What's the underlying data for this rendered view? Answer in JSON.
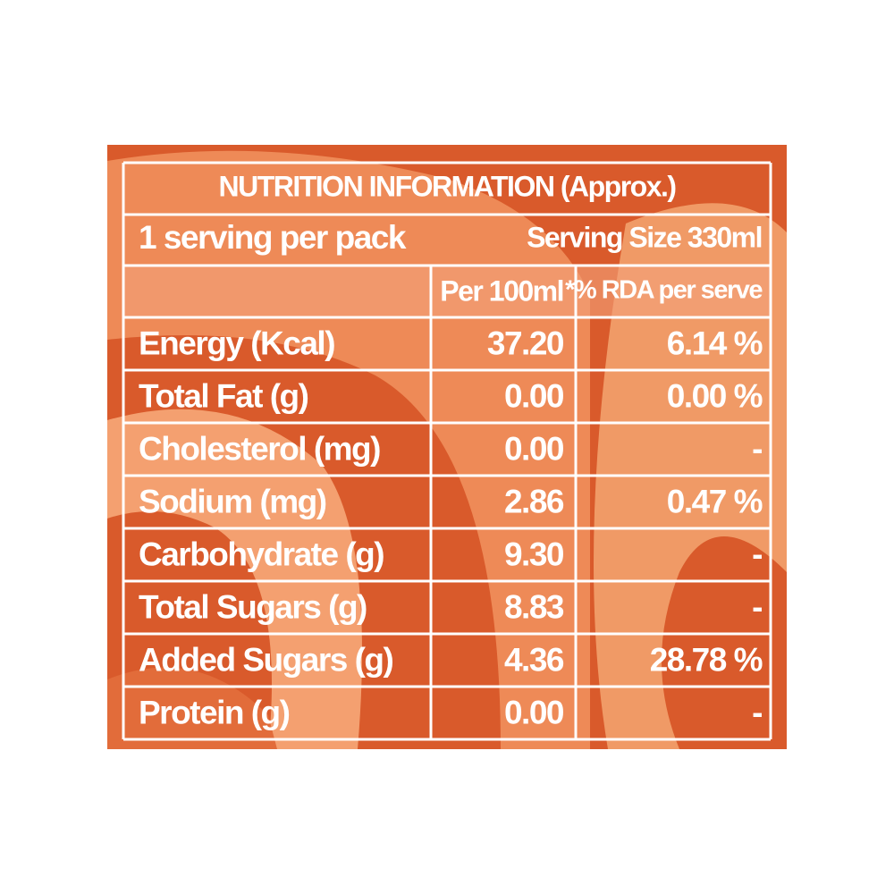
{
  "header": {
    "title": "NUTRITION INFORMATION (Approx.)"
  },
  "serving": {
    "per_pack": "1 serving per pack",
    "size": "Serving Size 330ml"
  },
  "table": {
    "columns": [
      "Per 100ml",
      "*% RDA per serve"
    ],
    "rows": [
      [
        "Energy (Kcal)",
        "37.20",
        "6.14 %"
      ],
      [
        "Total Fat (g)",
        "0.00",
        "0.00 %"
      ],
      [
        "Cholesterol (mg)",
        "0.00",
        "-"
      ],
      [
        "Sodium (mg)",
        "2.86",
        "0.47 %"
      ],
      [
        "Carbohydrate (g)",
        "9.30",
        "-"
      ],
      [
        "Total Sugars (g)",
        "8.83",
        "-"
      ],
      [
        "Added Sugars (g)",
        "4.36",
        "28.78 %"
      ],
      [
        "Protein (g)",
        "0.00",
        "-"
      ]
    ]
  }
}
